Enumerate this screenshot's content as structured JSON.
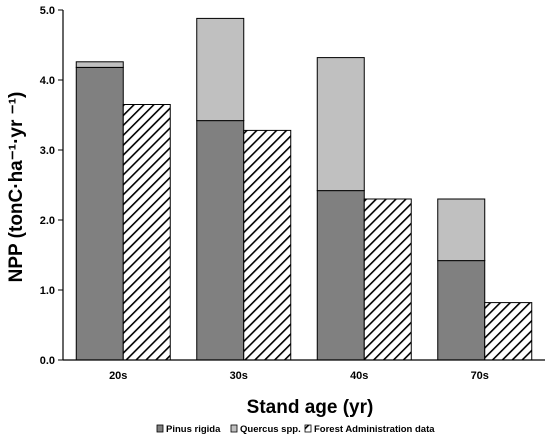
{
  "chart_data": {
    "type": "bar",
    "stacked_with_side_bar": true,
    "categories": [
      "20s",
      "30s",
      "40s",
      "70s"
    ],
    "series": [
      {
        "name": "Pinus rigida",
        "values": [
          4.18,
          3.42,
          2.42,
          1.42
        ],
        "color": "#808080",
        "pattern": "solid",
        "stack": "measured"
      },
      {
        "name": "Quercus spp.",
        "values": [
          0.08,
          1.46,
          1.9,
          0.88
        ],
        "color": "#c0c0c0",
        "pattern": "solid",
        "stack": "measured"
      },
      {
        "name": "Forest Administration data",
        "values": [
          3.65,
          3.28,
          2.3,
          0.82
        ],
        "color": "#ffffff",
        "pattern": "diagonal-hatch",
        "stack": "reference"
      }
    ],
    "xlabel": "Stand age (yr)",
    "ylabel": "NPP (tonC·ha⁻¹·yr ⁻¹)",
    "ylim": [
      0,
      5.0
    ],
    "yticks": [
      "0.0",
      "1.0",
      "2.0",
      "3.0",
      "4.0",
      "5.0"
    ],
    "grid": false,
    "legend_position": "bottom"
  }
}
